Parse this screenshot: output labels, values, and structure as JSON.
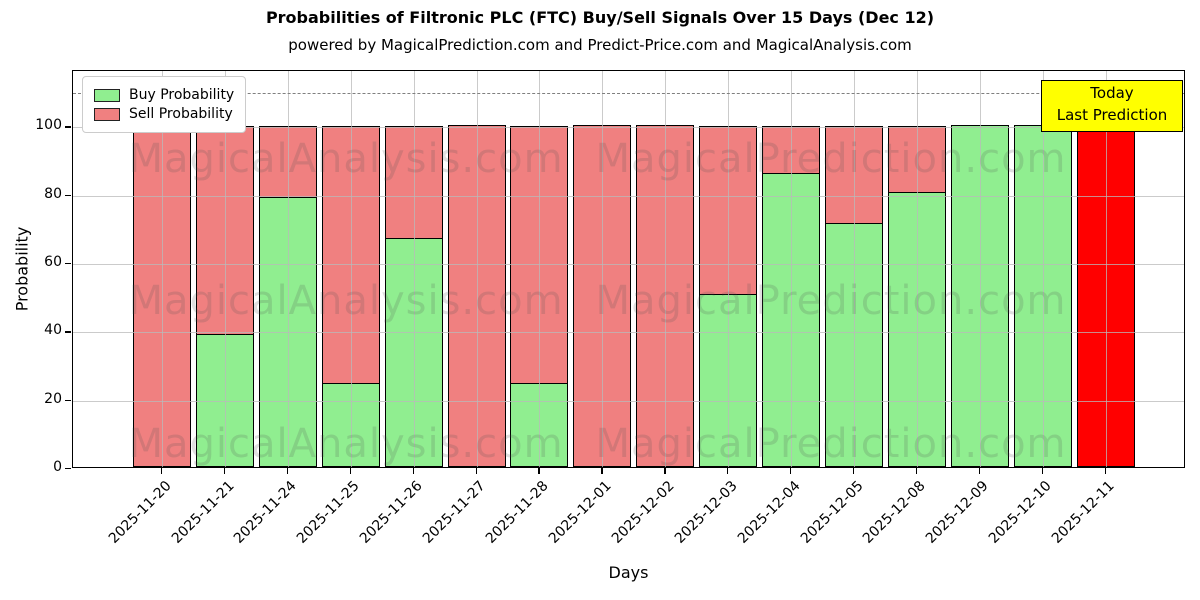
{
  "header": {
    "title": "Probabilities of Filtronic PLC (FTC) Buy/Sell Signals Over 15 Days (Dec 12)",
    "subtitle": "powered by MagicalPrediction.com and Predict-Price.com and MagicalAnalysis.com"
  },
  "legend": {
    "items": [
      {
        "label": "Buy Probability",
        "color": "#90ee90"
      },
      {
        "label": "Sell Probability",
        "color": "#f08080"
      }
    ]
  },
  "annotation": {
    "line1": "Today",
    "line2": "Last Prediction",
    "bg_color": "#ffff00"
  },
  "axes": {
    "ylabel": "Probability",
    "xlabel": "Days",
    "yticks": [
      0,
      20,
      40,
      60,
      80,
      100
    ],
    "ylim": [
      0,
      116.5
    ],
    "dashed_line_y": 110,
    "grid": "both"
  },
  "watermarks": {
    "left_text": "MagicalAnalysis.com",
    "right_text": "MagicalPrediction.com",
    "rows": 3
  },
  "colors": {
    "buy": "#90ee90",
    "sell": "#f08080",
    "today_bar": "#ff0000",
    "today_cap": "#ffa500",
    "bar_edge": "#000000"
  },
  "chart_data": {
    "type": "bar",
    "stacked": true,
    "title": "Probabilities of Filtronic PLC (FTC) Buy/Sell Signals Over 15 Days (Dec 12)",
    "xlabel": "Days",
    "ylabel": "Probability",
    "ylim": [
      0,
      116.5
    ],
    "categories": [
      "2025-11-20",
      "2025-11-21",
      "2025-11-24",
      "2025-11-25",
      "2025-11-26",
      "2025-11-27",
      "2025-11-28",
      "2025-12-01",
      "2025-12-02",
      "2025-12-03",
      "2025-12-04",
      "2025-12-05",
      "2025-12-08",
      "2025-12-09",
      "2025-12-10",
      "2025-12-11"
    ],
    "series": [
      {
        "name": "Buy Probability",
        "color": "#90ee90",
        "values": [
          0,
          39,
          79,
          24.5,
          67,
          0,
          24.5,
          0,
          0,
          50.5,
          86,
          71.5,
          80.5,
          100,
          100,
          0
        ]
      },
      {
        "name": "Sell Probability",
        "color": "#f08080",
        "values": [
          100,
          61,
          21,
          75.5,
          33,
          100,
          75.5,
          100,
          100,
          49.5,
          14,
          28.5,
          19.5,
          0,
          0,
          0
        ]
      }
    ],
    "today_bar": {
      "category": "2025-12-11",
      "index": 15,
      "value": 100,
      "color": "#ff0000",
      "label": "Today Last Prediction"
    },
    "legend_position": "upper left"
  }
}
